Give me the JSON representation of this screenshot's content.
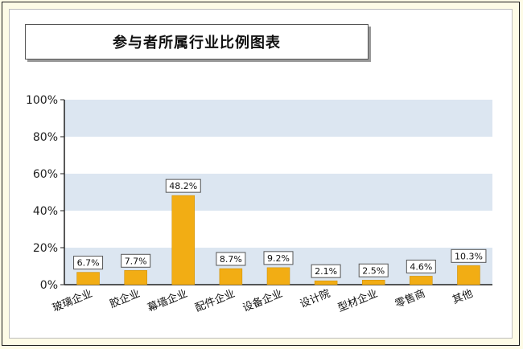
{
  "chart_data": {
    "type": "bar",
    "title": "参与者所属行业比例图表",
    "categories": [
      "玻璃企业",
      "胶企业",
      "幕墙企业",
      "配件企业",
      "设备企业",
      "设计院",
      "型材企业",
      "零售商",
      "其他"
    ],
    "values": [
      6.7,
      7.7,
      48.2,
      8.7,
      9.2,
      2.1,
      2.5,
      4.6,
      10.3
    ],
    "data_labels": [
      "6.7%",
      "7.7%",
      "48.2%",
      "8.7%",
      "9.2%",
      "2.1%",
      "2.5%",
      "4.6%",
      "10.3%"
    ],
    "yticks": [
      "0%",
      "20%",
      "40%",
      "60%",
      "80%",
      "100%"
    ],
    "ylim": [
      0,
      100
    ],
    "bar_color": "#f2ad14",
    "band_color": "#dce6f1",
    "grid": true,
    "legend": "none"
  }
}
